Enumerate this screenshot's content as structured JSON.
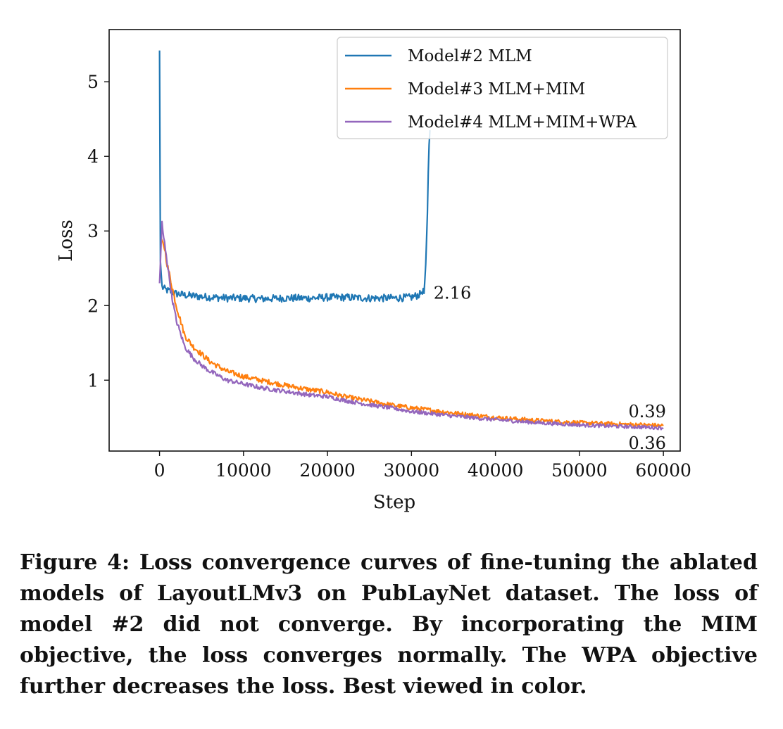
{
  "chart_data": {
    "type": "line",
    "xlabel": "Step",
    "ylabel": "Loss",
    "xlim": [
      -6000,
      62000
    ],
    "ylim": [
      0.05,
      5.7
    ],
    "x_ticks": [
      0,
      10000,
      20000,
      30000,
      40000,
      50000,
      60000
    ],
    "x_tick_labels": [
      "0",
      "10000",
      "20000",
      "30000",
      "40000",
      "50000",
      "60000"
    ],
    "y_ticks": [
      1,
      2,
      3,
      4,
      5
    ],
    "y_tick_labels": [
      "1",
      "2",
      "3",
      "4",
      "5"
    ],
    "grid": false,
    "legend_position": "top-right",
    "series": [
      {
        "name": "Model#2 MLM",
        "color": "#1f77b4",
        "x": [
          0,
          100,
          300,
          600,
          1000,
          1500,
          2000,
          3000,
          5000,
          8000,
          10000,
          12000,
          15000,
          18000,
          20000,
          22000,
          25000,
          28000,
          30000,
          31000,
          31300,
          31500,
          31700,
          31900,
          32000,
          32100,
          32200
        ],
        "y": [
          5.42,
          2.6,
          2.25,
          2.22,
          2.2,
          2.18,
          2.16,
          2.14,
          2.12,
          2.1,
          2.1,
          2.09,
          2.1,
          2.1,
          2.11,
          2.11,
          2.1,
          2.1,
          2.11,
          2.15,
          2.2,
          2.17,
          2.5,
          3.2,
          3.8,
          4.2,
          4.35
        ],
        "noise": 0.045
      },
      {
        "name": "Model#3 MLM+MIM",
        "color": "#ff7f0e",
        "x": [
          200,
          400,
          700,
          1000,
          1500,
          2000,
          3000,
          4000,
          5000,
          6000,
          8000,
          10000,
          12000,
          15000,
          18000,
          20000,
          22000,
          25000,
          28000,
          30000,
          35000,
          40000,
          45000,
          50000,
          55000,
          58000,
          60000
        ],
        "y": [
          2.9,
          2.85,
          2.7,
          2.5,
          2.25,
          2.0,
          1.6,
          1.45,
          1.35,
          1.25,
          1.12,
          1.05,
          1.0,
          0.93,
          0.87,
          0.84,
          0.78,
          0.72,
          0.66,
          0.63,
          0.56,
          0.5,
          0.46,
          0.43,
          0.41,
          0.4,
          0.39
        ],
        "noise": 0.04
      },
      {
        "name": "Model#4 MLM+MIM+WPA",
        "color": "#9467bd",
        "x": [
          0,
          150,
          300,
          500,
          800,
          1000,
          1500,
          2000,
          3000,
          4000,
          5000,
          6000,
          8000,
          10000,
          12000,
          15000,
          18000,
          20000,
          22000,
          25000,
          28000,
          30000,
          35000,
          40000,
          45000,
          50000,
          55000,
          58000,
          60000
        ],
        "y": [
          2.3,
          2.7,
          3.1,
          2.9,
          2.7,
          2.5,
          2.1,
          1.8,
          1.45,
          1.3,
          1.2,
          1.12,
          1.0,
          0.95,
          0.9,
          0.85,
          0.8,
          0.78,
          0.73,
          0.67,
          0.62,
          0.58,
          0.52,
          0.47,
          0.43,
          0.4,
          0.38,
          0.37,
          0.36
        ],
        "noise": 0.035
      }
    ],
    "annotations": [
      {
        "text": "2.16",
        "x": 32300,
        "y": 2.16
      },
      {
        "text": "0.39",
        "x": 56000,
        "y": 0.39
      },
      {
        "text": "0.36",
        "x": 56000,
        "y": 0.36
      }
    ]
  },
  "caption": "Figure 4: Loss convergence curves of fine-tuning the ablated models of LayoutLMv3 on PubLayNet dataset. The loss of model #2 did not converge. By incorporating the MIM objective, the loss converges normally. The WPA objective further decreases the loss. Best viewed in color."
}
